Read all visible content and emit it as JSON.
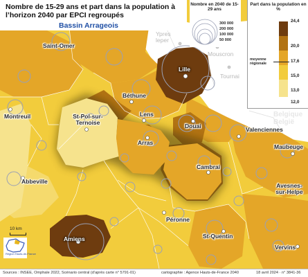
{
  "title": "Nombre de 15-29 ans et part dans la population à l’horizon 2040 par EPCI regroupés",
  "subtitle": "Bassin Arrageois",
  "circle_legend": {
    "title": "Nombre en 2040 de 15-29 ans",
    "values": [
      "300 000",
      "200 000",
      "100 000",
      "50 000"
    ]
  },
  "color_legend": {
    "title": "Part dans la population en %",
    "breaks": [
      "24,4",
      "20,0",
      "17,6",
      "15,0",
      "13,0",
      "12,0"
    ],
    "colors": [
      "#6e3c0f",
      "#b27313",
      "#e4a628",
      "#f2cc3c",
      "#f6e38d"
    ],
    "average_label": "moyenne régionale"
  },
  "places": {
    "saint_omer": "Saint-Omer",
    "lille": "Lille",
    "bethune": "Béthune",
    "lens": "Lens",
    "douai": "Douai",
    "st_pol": "St-Pol-sur-Ternoise",
    "arras": "Arras",
    "montreuil": "Montreuil",
    "valenciennes": "Valenciennes",
    "maubeuge": "Maubeuge",
    "cambrai": "Cambrai",
    "abbeville": "Abbeville",
    "avesnes": "Avesnes-sur-Helpe",
    "peronne": "Péronne",
    "amiens": "Amiens",
    "st_quentin": "St-Quentin",
    "vervins": "Vervins",
    "ypres": "Ypres leper",
    "mouscron": "Mouscron",
    "tournai": "Tournai",
    "belgique": "Belgique België"
  },
  "scale": "10 km",
  "logo_text": "Région Hauts-de-France",
  "footer": {
    "sources": "Sources : INSEE, Omphale 2022, Scénario central (d’après carte n° 5791-01)",
    "credits": "cartographie : Agence Hauts-de-France 2040",
    "date": "18 avril 2024 · n° 3841-36"
  }
}
